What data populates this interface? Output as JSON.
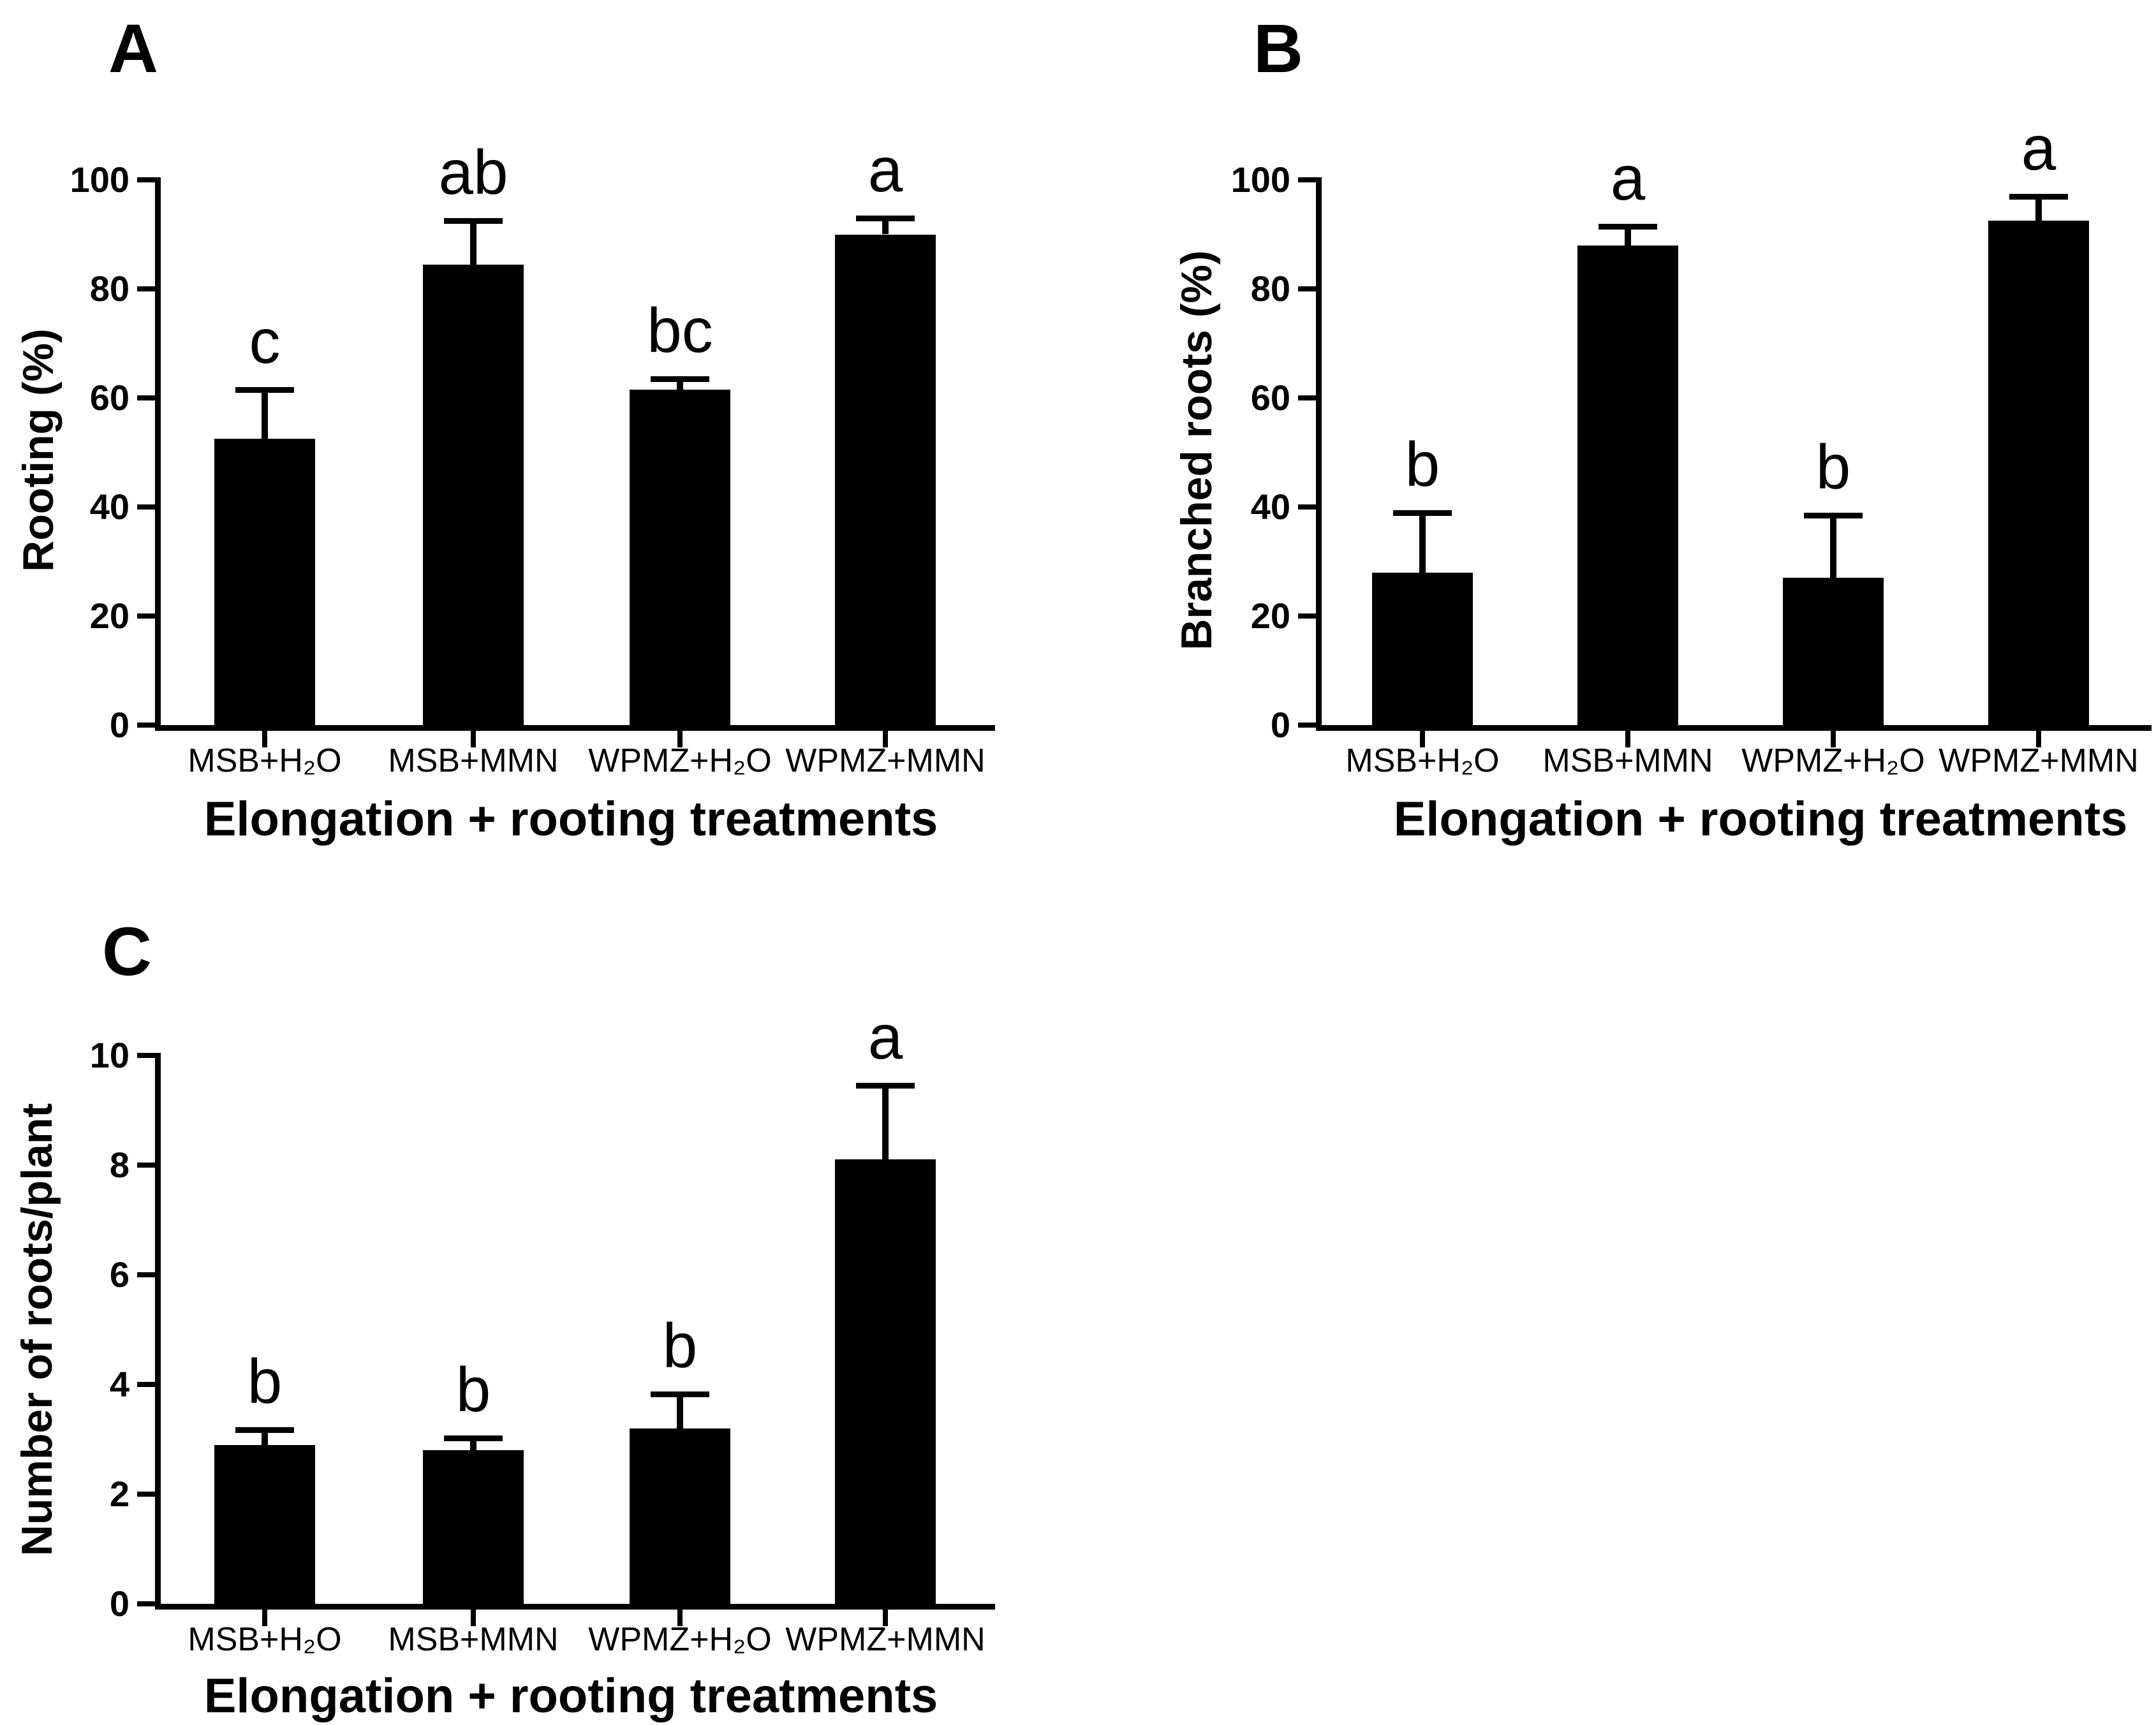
{
  "figure": {
    "background": "#ffffff",
    "bar_color": "#000000",
    "axis_color": "#000000",
    "text_color": "#000000",
    "error_bars": "upper only, with cap"
  },
  "chart_data": [
    {
      "type": "bar",
      "panel_label": "A",
      "title": "",
      "ylabel": "Rooting (%)",
      "xlabel": "Elongation + rooting treatments",
      "categories": [
        "MSB+H₂O",
        "MSB+MMN",
        "WPMZ+H₂O",
        "WPMZ+MMN"
      ],
      "values": [
        52.5,
        84.5,
        61.5,
        90
      ],
      "errors_upper": [
        9,
        8,
        2,
        3
      ],
      "sig_letters": [
        "c",
        "ab",
        "bc",
        "a"
      ],
      "ylim": [
        0,
        100
      ],
      "yticks": [
        0,
        20,
        40,
        60,
        80,
        100
      ],
      "grid": false,
      "legend": false
    },
    {
      "type": "bar",
      "panel_label": "B",
      "title": "",
      "ylabel": "Branched roots (%)",
      "xlabel": "Elongation + rooting treatments",
      "categories": [
        "MSB+H₂O",
        "MSB+MMN",
        "WPMZ+H₂O",
        "WPMZ+MMN"
      ],
      "values": [
        28,
        88,
        27,
        92.5
      ],
      "errors_upper": [
        11,
        3.5,
        11.5,
        4.5
      ],
      "sig_letters": [
        "b",
        "a",
        "b",
        "a"
      ],
      "ylim": [
        0,
        100
      ],
      "yticks": [
        0,
        20,
        40,
        60,
        80,
        100
      ],
      "grid": false,
      "legend": false
    },
    {
      "type": "bar",
      "panel_label": "C",
      "title": "",
      "ylabel": "Number of roots/plant",
      "xlabel": "Elongation + rooting treatments",
      "categories": [
        "MSB+H₂O",
        "MSB+MMN",
        "WPMZ+H₂O",
        "WPMZ+MMN"
      ],
      "values": [
        2.9,
        2.8,
        3.2,
        8.1
      ],
      "errors_upper": [
        0.27,
        0.22,
        0.63,
        1.35
      ],
      "sig_letters": [
        "b",
        "b",
        "b",
        "a"
      ],
      "ylim": [
        0,
        10
      ],
      "yticks": [
        0,
        2,
        4,
        6,
        8,
        10
      ],
      "grid": false,
      "legend": false
    }
  ]
}
